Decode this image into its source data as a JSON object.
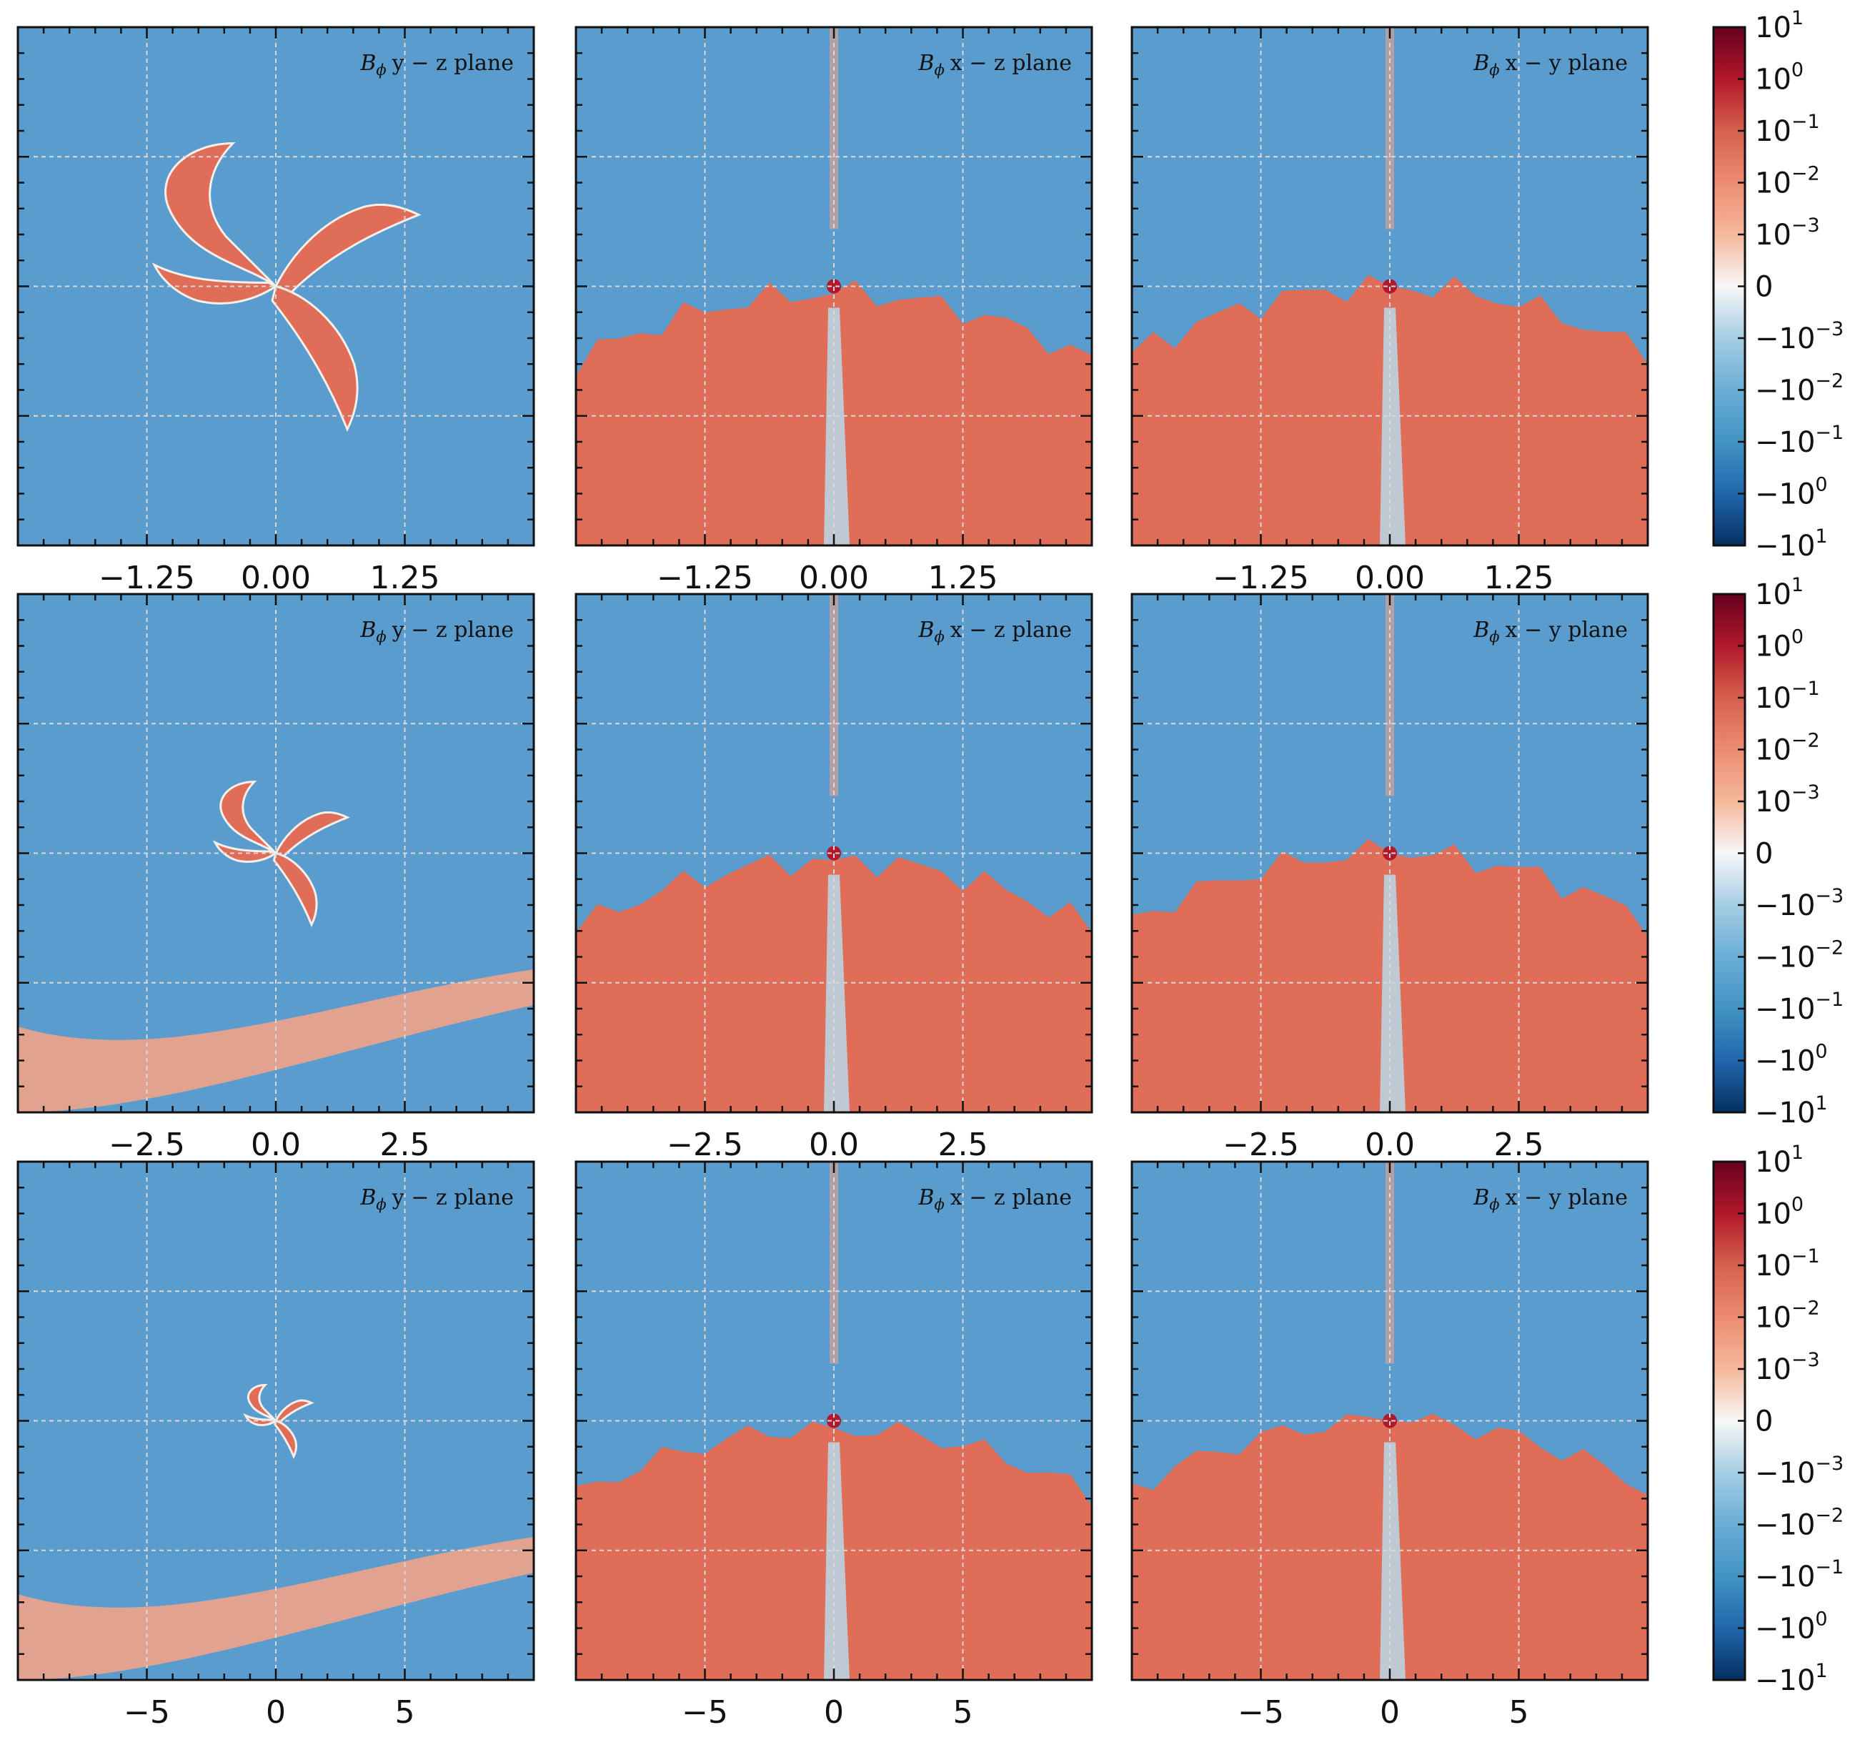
{
  "chart_data": {
    "type": "heatmap",
    "layout": {
      "rows": 3,
      "cols": 3
    },
    "quantity": {
      "symbol": "B",
      "subscript": "ϕ"
    },
    "plane_labels": [
      "y − z plane",
      "x − z plane",
      "x − y plane"
    ],
    "rows": [
      {
        "xlim": [
          -2.5,
          2.5
        ],
        "xticks": [
          -1.25,
          0.0,
          1.25
        ],
        "xtick_labels": [
          "−1.25",
          "0.00",
          "1.25"
        ]
      },
      {
        "xlim": [
          -5,
          5
        ],
        "xticks": [
          -2.5,
          0.0,
          2.5
        ],
        "xtick_labels": [
          "−2.5",
          "0.0",
          "2.5"
        ]
      },
      {
        "xlim": [
          -10,
          10
        ],
        "xticks": [
          -5,
          0,
          5
        ],
        "xtick_labels": [
          "−5",
          "0",
          "5"
        ]
      }
    ],
    "grid": true,
    "colormap": "RdBu_r",
    "colors": {
      "positive": "#e06d57",
      "negative": "#5a9ccd",
      "zero": "#f7f7f7",
      "max": "#67001f",
      "min": "#053061"
    },
    "colorbar": {
      "scale": "symlog",
      "ticks": [
        {
          "base": "10",
          "exp": "1"
        },
        {
          "base": "10",
          "exp": "0"
        },
        {
          "base": "10",
          "exp": "−1"
        },
        {
          "base": "10",
          "exp": "−2"
        },
        {
          "base": "10",
          "exp": "−3"
        },
        {
          "base": "0",
          "exp": ""
        },
        {
          "base": "−10",
          "exp": "−3"
        },
        {
          "base": "−10",
          "exp": "−2"
        },
        {
          "base": "−10",
          "exp": "−1"
        },
        {
          "base": "−10",
          "exp": "0"
        },
        {
          "base": "−10",
          "exp": "1"
        }
      ]
    }
  }
}
